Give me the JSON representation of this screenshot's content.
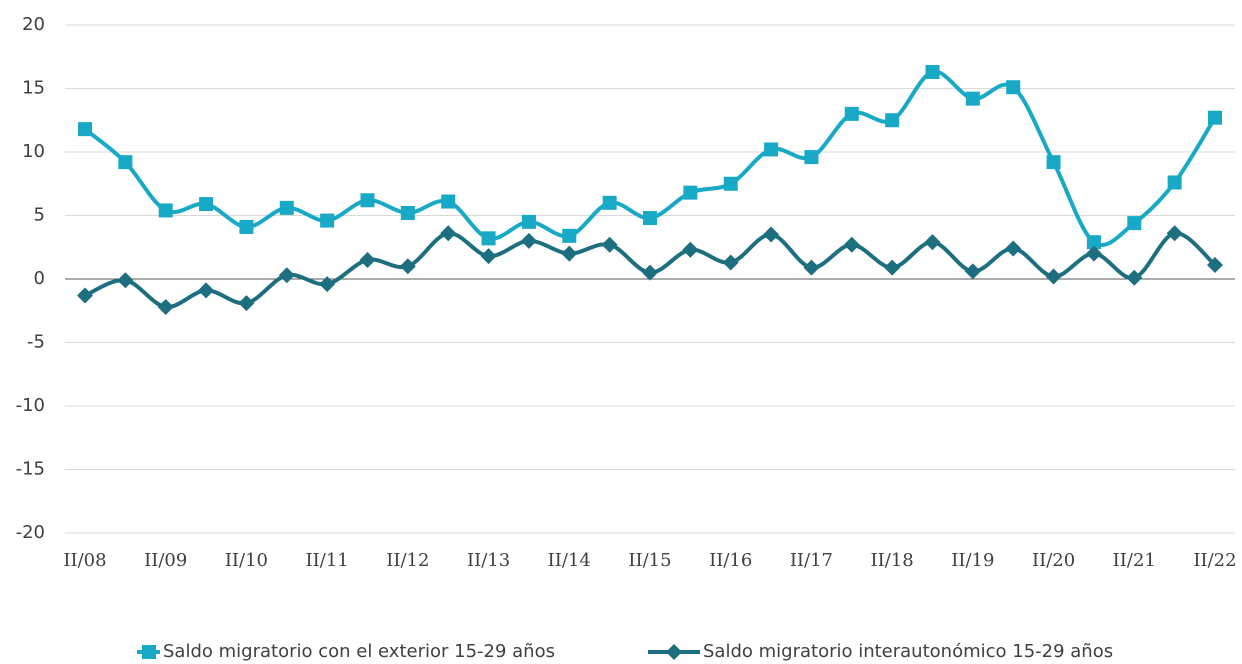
{
  "chart_data": {
    "type": "line",
    "categories": [
      "II/08",
      null,
      "II/09",
      null,
      "II/10",
      null,
      "II/11",
      null,
      "II/12",
      null,
      "II/13",
      null,
      "II/14",
      null,
      "II/15",
      null,
      "II/16",
      null,
      "II/17",
      null,
      "II/18",
      null,
      "II/19",
      null,
      "II/20",
      null,
      "II/21",
      null,
      "II/22"
    ],
    "series": [
      {
        "name": "Saldo migratorio con el exterior 15-29 años",
        "color": "#17a9c6",
        "marker": "square",
        "values": [
          11.8,
          9.2,
          5.4,
          5.9,
          4.1,
          5.6,
          4.6,
          6.2,
          5.2,
          6.1,
          3.2,
          4.5,
          3.4,
          6.0,
          4.8,
          6.8,
          7.5,
          10.2,
          9.6,
          13.0,
          12.5,
          16.3,
          14.2,
          15.1,
          9.2,
          2.9,
          4.4,
          7.6,
          12.7
        ]
      },
      {
        "name": "Saldo migratorio interautonómico 15-29 años",
        "color": "#1d6f80",
        "marker": "diamond",
        "values": [
          -1.3,
          -0.1,
          -2.2,
          -0.9,
          -1.9,
          0.3,
          -0.4,
          1.5,
          1.0,
          3.6,
          1.8,
          3.0,
          2.0,
          2.7,
          0.5,
          2.3,
          1.3,
          3.5,
          0.9,
          2.7,
          0.9,
          2.9,
          0.6,
          2.4,
          0.2,
          2.0,
          0.1,
          3.6,
          1.1
        ]
      }
    ],
    "ylim": [
      -20,
      20
    ],
    "yticks": [
      -20,
      -15,
      -10,
      -5,
      0,
      5,
      10,
      15,
      20
    ],
    "grid": true,
    "legend": "bottom"
  }
}
